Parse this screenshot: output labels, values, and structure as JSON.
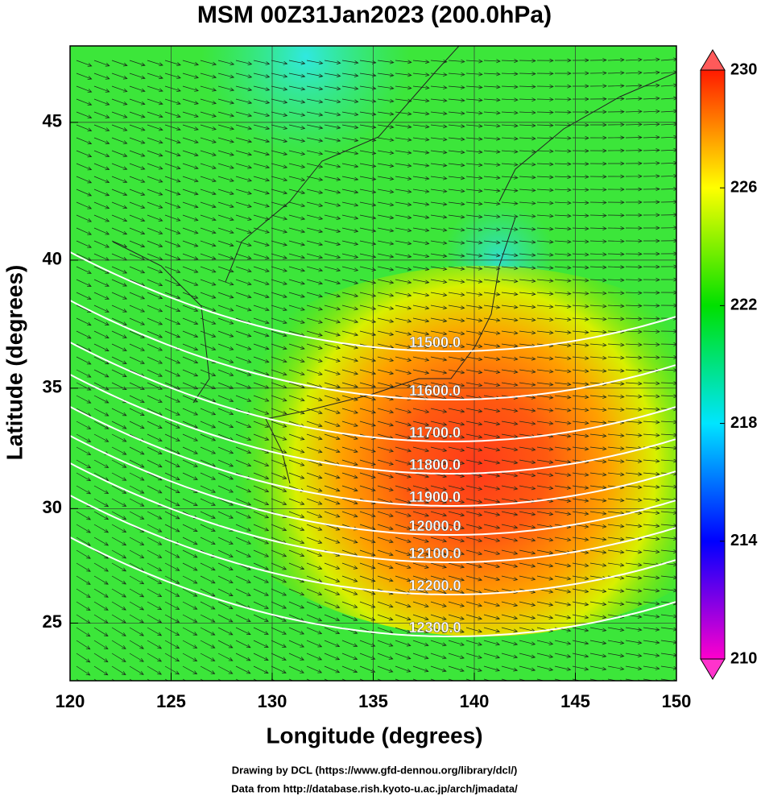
{
  "chart_data": {
    "type": "map",
    "title": "MSM 00Z31Jan2023 (200.0hPa)",
    "xlabel": "Longitude (degrees)",
    "ylabel": "Latitude  (degrees)",
    "projection": "mercator",
    "xlim": [
      120,
      150
    ],
    "xticks": [
      120,
      125,
      130,
      135,
      140,
      145,
      150
    ],
    "ylim": [
      22.4,
      47.6
    ],
    "yticks": [
      25,
      30,
      35,
      40,
      45
    ],
    "grid": true,
    "contours": [
      {
        "value": 11500,
        "label": "11500.0"
      },
      {
        "value": 11600,
        "label": "11600.0"
      },
      {
        "value": 11700,
        "label": "11700.0"
      },
      {
        "value": 11800,
        "label": "11800.0"
      },
      {
        "value": 11900,
        "label": "11900.0"
      },
      {
        "value": 12000,
        "label": "12000.0"
      },
      {
        "value": 12100,
        "label": "12100.0"
      },
      {
        "value": 12200,
        "label": "12200.0"
      },
      {
        "value": 12300,
        "label": "12300.0"
      }
    ],
    "colorbar": {
      "lim": [
        210,
        230
      ],
      "ticks": [
        210,
        214,
        218,
        222,
        226,
        230
      ],
      "colors": [
        "#ff00cc",
        "#0000ff",
        "#00e5ff",
        "#00e000",
        "#ffff00",
        "#ff1a00"
      ]
    },
    "footer": [
      "Drawing by DCL (https://www.gfd-dennou.org/library/dcl/)",
      "Data from http://database.rish.kyoto-u.ac.jp/arch/jmadata/"
    ]
  }
}
